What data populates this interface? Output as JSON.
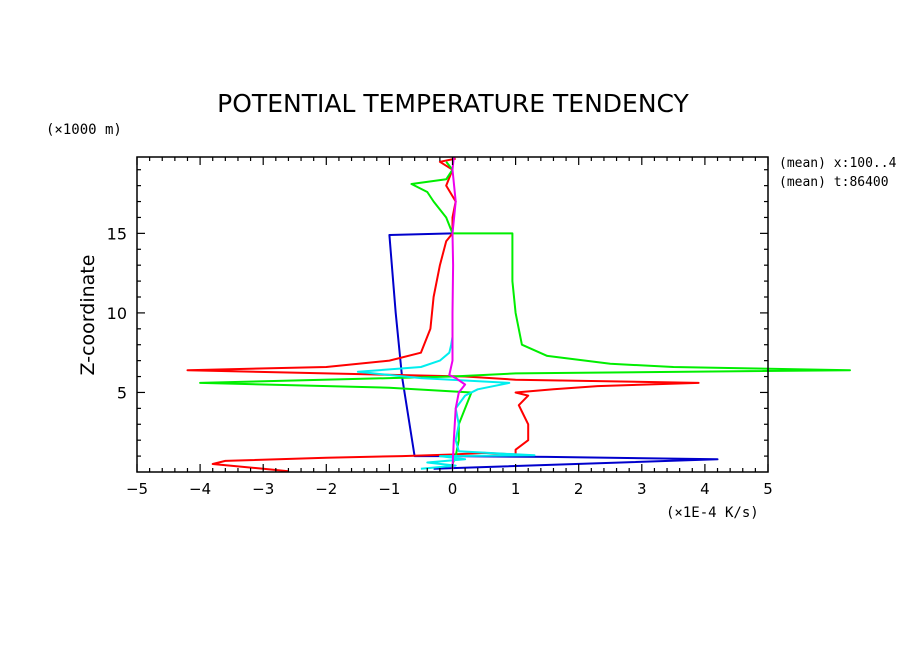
{
  "chart_data": {
    "type": "line",
    "title": "POTENTIAL TEMPERATURE TENDENCY",
    "ylabel": "Z-coordinate",
    "y_unit": "(×1000 m)",
    "x_unit": "(×1E-4 K/s)",
    "annotations": [
      "(mean) x:100..4",
      "(mean) t:86400"
    ],
    "xlim": [
      -5,
      5
    ],
    "ylim": [
      0,
      19.8
    ],
    "x_ticks": [
      -5,
      -4,
      -3,
      -2,
      -1,
      0,
      1,
      2,
      3,
      4,
      5
    ],
    "y_ticks": [
      5,
      10,
      15
    ],
    "colors": [
      "#0000cc",
      "#ff0000",
      "#00ee00",
      "#00eeee",
      "#ee00ee"
    ],
    "series": [
      {
        "color": "#0000cc",
        "points": [
          [
            -0.3,
            0.2
          ],
          [
            4.2,
            0.8
          ],
          [
            1.5,
            0.95
          ],
          [
            0,
            1.0
          ],
          [
            -0.6,
            1.0
          ],
          [
            -0.8,
            6
          ],
          [
            -0.9,
            10
          ],
          [
            -1.0,
            14.9
          ],
          [
            0,
            15.0
          ]
        ]
      },
      {
        "color": "#ff0000",
        "points": [
          [
            -2.6,
            0.05
          ],
          [
            -3.0,
            0.2
          ],
          [
            -3.8,
            0.5
          ],
          [
            -3.6,
            0.7
          ],
          [
            -2.0,
            0.9
          ],
          [
            -0.8,
            1.0
          ],
          [
            0,
            1.1
          ],
          [
            0.5,
            1.2
          ],
          [
            1.0,
            1.1
          ],
          [
            1.0,
            1.4
          ],
          [
            1.2,
            2
          ],
          [
            1.2,
            3
          ],
          [
            1.1,
            3.8
          ],
          [
            1.05,
            4.2
          ],
          [
            1.2,
            4.8
          ],
          [
            1.0,
            5.0
          ],
          [
            1.6,
            5.2
          ],
          [
            2.3,
            5.4
          ],
          [
            3.9,
            5.6
          ],
          [
            1.0,
            5.8
          ],
          [
            0.2,
            6.0
          ],
          [
            -2.0,
            6.2
          ],
          [
            -4.2,
            6.4
          ],
          [
            -2.0,
            6.6
          ],
          [
            -1.0,
            7.0
          ],
          [
            -0.5,
            7.5
          ],
          [
            -0.35,
            9
          ],
          [
            -0.3,
            11
          ],
          [
            -0.2,
            13
          ],
          [
            -0.1,
            14.5
          ],
          [
            0,
            15.0
          ],
          [
            0,
            16
          ],
          [
            0.05,
            17
          ],
          [
            -0.1,
            18
          ],
          [
            0,
            19
          ],
          [
            -0.2,
            19.5
          ],
          [
            0.05,
            19.7
          ]
        ]
      },
      {
        "color": "#00ee00",
        "points": [
          [
            0,
            0.5
          ],
          [
            0.05,
            1.0
          ],
          [
            0.1,
            2
          ],
          [
            0.1,
            3
          ],
          [
            0.2,
            4
          ],
          [
            0.3,
            5.0
          ],
          [
            -1.0,
            5.3
          ],
          [
            -4.0,
            5.6
          ],
          [
            -1.0,
            5.9
          ],
          [
            0,
            6.0
          ],
          [
            1.0,
            6.2
          ],
          [
            6.3,
            6.4
          ],
          [
            3.5,
            6.6
          ],
          [
            2.5,
            6.8
          ],
          [
            1.5,
            7.3
          ],
          [
            1.1,
            8
          ],
          [
            1.0,
            10
          ],
          [
            0.95,
            12
          ],
          [
            0.95,
            15.0
          ],
          [
            0,
            15.0
          ],
          [
            -0.1,
            16
          ],
          [
            -0.3,
            17
          ],
          [
            -0.4,
            17.6
          ],
          [
            -0.65,
            18.1
          ],
          [
            -0.1,
            18.4
          ],
          [
            0,
            19
          ],
          [
            -0.1,
            19.5
          ]
        ]
      },
      {
        "color": "#00eeee",
        "points": [
          [
            -0.5,
            0.2
          ],
          [
            0.05,
            0.4
          ],
          [
            -0.4,
            0.6
          ],
          [
            0.2,
            0.8
          ],
          [
            -0.2,
            1.0
          ],
          [
            1.3,
            1.05
          ],
          [
            0.1,
            1.3
          ],
          [
            0.05,
            2
          ],
          [
            0.1,
            3
          ],
          [
            0.05,
            4
          ],
          [
            0.2,
            4.8
          ],
          [
            0.4,
            5.2
          ],
          [
            0.9,
            5.6
          ],
          [
            -0.5,
            5.9
          ],
          [
            -1.5,
            6.3
          ],
          [
            -0.5,
            6.6
          ],
          [
            -0.2,
            7.0
          ],
          [
            -0.05,
            7.5
          ],
          [
            -0.02,
            8.0
          ],
          [
            0,
            8.5
          ]
        ]
      },
      {
        "color": "#ee00ee",
        "points": [
          [
            0,
            0.2
          ],
          [
            0.02,
            2
          ],
          [
            0.05,
            4
          ],
          [
            0.1,
            5.0
          ],
          [
            0.2,
            5.5
          ],
          [
            0.05,
            5.9
          ],
          [
            -0.05,
            6.1
          ],
          [
            0,
            7
          ],
          [
            0,
            10
          ],
          [
            0.01,
            13
          ],
          [
            0,
            15
          ],
          [
            0.05,
            17
          ],
          [
            0,
            19
          ],
          [
            0.02,
            19.8
          ]
        ]
      }
    ]
  }
}
